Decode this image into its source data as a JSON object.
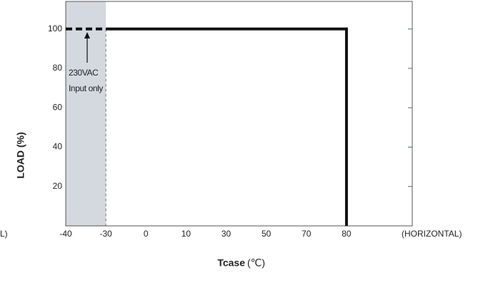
{
  "chart_data": {
    "type": "line",
    "y_label": "LOAD (%)",
    "x_label": "Tcase",
    "x_label_unit": "(℃)",
    "x_left_note": "L)",
    "x_right_note": "(HORIZONTAL)",
    "annotation": [
      "230VAC",
      "Input only"
    ],
    "shaded_region": [
      -40,
      -30
    ],
    "xlim": [
      -40,
      96.4
    ],
    "xticks": [
      -40,
      -30,
      0,
      10,
      30,
      50,
      70,
      80
    ],
    "ylim": [
      0,
      114
    ],
    "yticks": [
      20,
      40,
      60,
      80,
      100
    ],
    "series": [
      {
        "x": [
          -40,
          -30
        ],
        "values": [
          100,
          100
        ],
        "color": "#111111",
        "dashed": true
      },
      {
        "x": [
          -30,
          80,
          80
        ],
        "values": [
          100,
          100,
          0
        ],
        "color": "#111111",
        "dashed": false
      }
    ]
  }
}
